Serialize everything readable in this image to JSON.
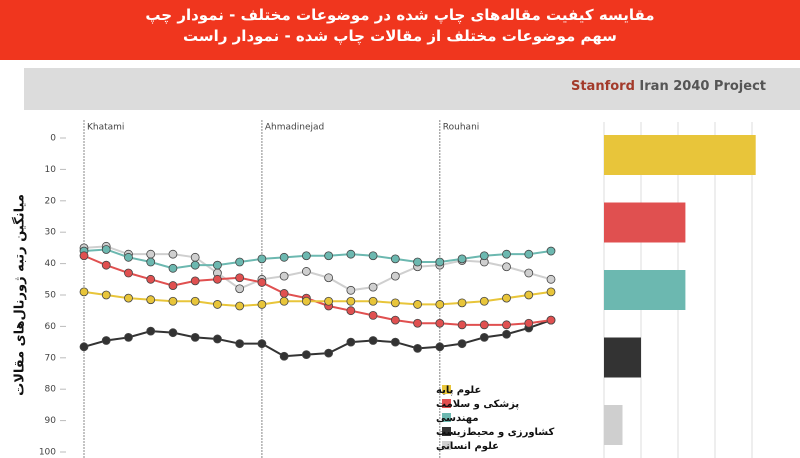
{
  "header": {
    "title_lines": [
      "مقایسه کیفیت مقاله‌های چاپ شده در موضوعات مختلف - نمودار چپ",
      "سهم موضوعات مختلف از مقالات چاپ شده - نمودار راست"
    ]
  },
  "brand": {
    "strong": "Stanford",
    "rest": "Iran 2040 Project"
  },
  "chart_data": [
    {
      "type": "line",
      "y_label": "میانگین رتبه ژورنال‌های مقالات",
      "categories": [
        "Khatami",
        null,
        null,
        null,
        null,
        null,
        null,
        null,
        "Ahmadinejad",
        null,
        null,
        null,
        null,
        null,
        null,
        null,
        "Rouhani",
        null,
        null,
        null,
        null,
        null
      ],
      "ylim": [
        0,
        100
      ],
      "y_inverted": true,
      "yticks": [
        0,
        10,
        20,
        30,
        40,
        50,
        60,
        70,
        80,
        90,
        100
      ],
      "grid": false,
      "series": [
        {
          "name": "علوم انسانی",
          "color": "#cfcfcf",
          "values": [
            35,
            34.5,
            37,
            37,
            37,
            38,
            43,
            48,
            45,
            44,
            42.5,
            44.5,
            48.5,
            47.5,
            44,
            41,
            40.5,
            39,
            39.5,
            41,
            43,
            45
          ]
        },
        {
          "name": "کشاورزی و محیط‌زیست",
          "color": "#333333",
          "values": [
            66.5,
            64.5,
            63.5,
            61.5,
            62,
            63.5,
            64,
            65.5,
            65.5,
            69.5,
            69,
            68.5,
            65,
            64.5,
            65,
            67,
            66.5,
            65.5,
            63.5,
            62.5,
            60.5,
            58
          ]
        },
        {
          "name": "مهندسی",
          "color": "#6cb8b0",
          "values": [
            36,
            35.5,
            38,
            39.5,
            41.5,
            40.5,
            40.5,
            39.5,
            38.5,
            38,
            37.5,
            37.5,
            37,
            37.5,
            38.5,
            39.5,
            39.5,
            38.5,
            37.5,
            37,
            37,
            36
          ]
        },
        {
          "name": "پزشکی و سلامت",
          "color": "#e05050",
          "values": [
            37.5,
            40.5,
            43,
            45,
            47,
            45.5,
            45,
            44.5,
            46,
            49.5,
            51,
            53.5,
            55,
            56.5,
            58,
            59,
            59,
            59.5,
            59.5,
            59.5,
            59,
            58
          ]
        },
        {
          "name": "علوم پایه",
          "color": "#e8c53a",
          "values": [
            49,
            50,
            51,
            51.5,
            52,
            52,
            53,
            53.5,
            53,
            52,
            52,
            52,
            52,
            52,
            52.5,
            53,
            53,
            52.5,
            52,
            51,
            50,
            49
          ]
        }
      ]
    },
    {
      "type": "bar",
      "orientation": "horizontal",
      "values": [
        41,
        22,
        22,
        10,
        5
      ],
      "colors": [
        "#e8c53a",
        "#e05050",
        "#6cb8b0",
        "#333333",
        "#cfcfcf"
      ],
      "xlim": [
        0,
        45
      ],
      "xticks": [
        0,
        10,
        20,
        30,
        40
      ],
      "grid": true
    }
  ]
}
